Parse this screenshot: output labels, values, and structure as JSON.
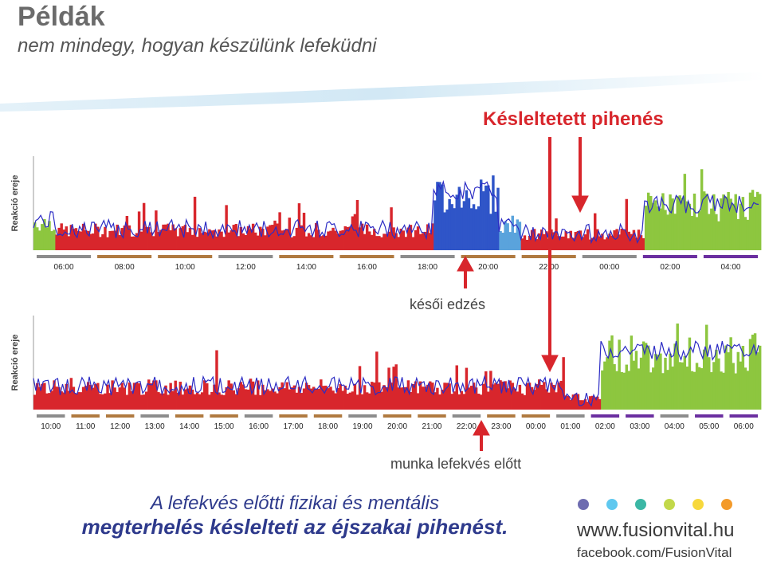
{
  "header": {
    "title": "Példák",
    "subtitle": "nem mindegy, hogyan készülünk lefeküdni"
  },
  "annotations": {
    "delayed_rest": "Késleltetett pihenés",
    "late_workout": "késői edzés",
    "work_before_bed": "munka lefekvés előtt"
  },
  "caption": {
    "line1": "A lefekvés előtti fizikai és mentális",
    "line2": "megterhelés késlelteti az éjszakai pihenést."
  },
  "brand": {
    "website": "www.fusionvital.hu",
    "facebook": "facebook.com/FusionVital",
    "dot_colors": [
      "#6e6cb0",
      "#5fc8ef",
      "#3bb7a5",
      "#c2d84a",
      "#f7d83c",
      "#f39a2a"
    ]
  },
  "colors": {
    "red": "#d8262c",
    "blue": "#2f55c8",
    "lightblue": "#5aa3dc",
    "green": "#8dc63f",
    "line": "#2c2cc4",
    "purple": "#6b2fa0",
    "brown": "#b07a40",
    "gray": "#8c8c8c"
  },
  "chart_data": [
    {
      "type": "area",
      "ylabel": "Reakció ereje",
      "xlabels": [
        "06:00",
        "08:00",
        "10:00",
        "12:00",
        "14:00",
        "16:00",
        "18:00",
        "20:00",
        "22:00",
        "00:00",
        "02:00",
        "04:00"
      ],
      "segments": [
        {
          "from": 0,
          "to": 0.03,
          "color": "green",
          "level": 0.35
        },
        {
          "from": 0.03,
          "to": 0.55,
          "color": "red",
          "level": 0.25
        },
        {
          "from": 0.55,
          "to": 0.64,
          "color": "blue",
          "level": 0.7
        },
        {
          "from": 0.64,
          "to": 0.67,
          "color": "lightblue",
          "level": 0.3
        },
        {
          "from": 0.67,
          "to": 0.84,
          "color": "red",
          "level": 0.2
        },
        {
          "from": 0.84,
          "to": 1.0,
          "color": "green",
          "level": 0.55
        }
      ]
    },
    {
      "type": "area",
      "ylabel": "Reakció ereje",
      "xlabels": [
        "10:00",
        "11:00",
        "12:00",
        "13:00",
        "14:00",
        "15:00",
        "16:00",
        "17:00",
        "18:00",
        "19:00",
        "20:00",
        "21:00",
        "22:00",
        "23:00",
        "00:00",
        "01:00",
        "02:00",
        "03:00",
        "04:00",
        "05:00",
        "06:00"
      ],
      "segments": [
        {
          "from": 0,
          "to": 0.73,
          "color": "red",
          "level": 0.28
        },
        {
          "from": 0.73,
          "to": 0.78,
          "color": "red",
          "level": 0.15
        },
        {
          "from": 0.78,
          "to": 1.0,
          "color": "green",
          "level": 0.7
        }
      ]
    }
  ]
}
